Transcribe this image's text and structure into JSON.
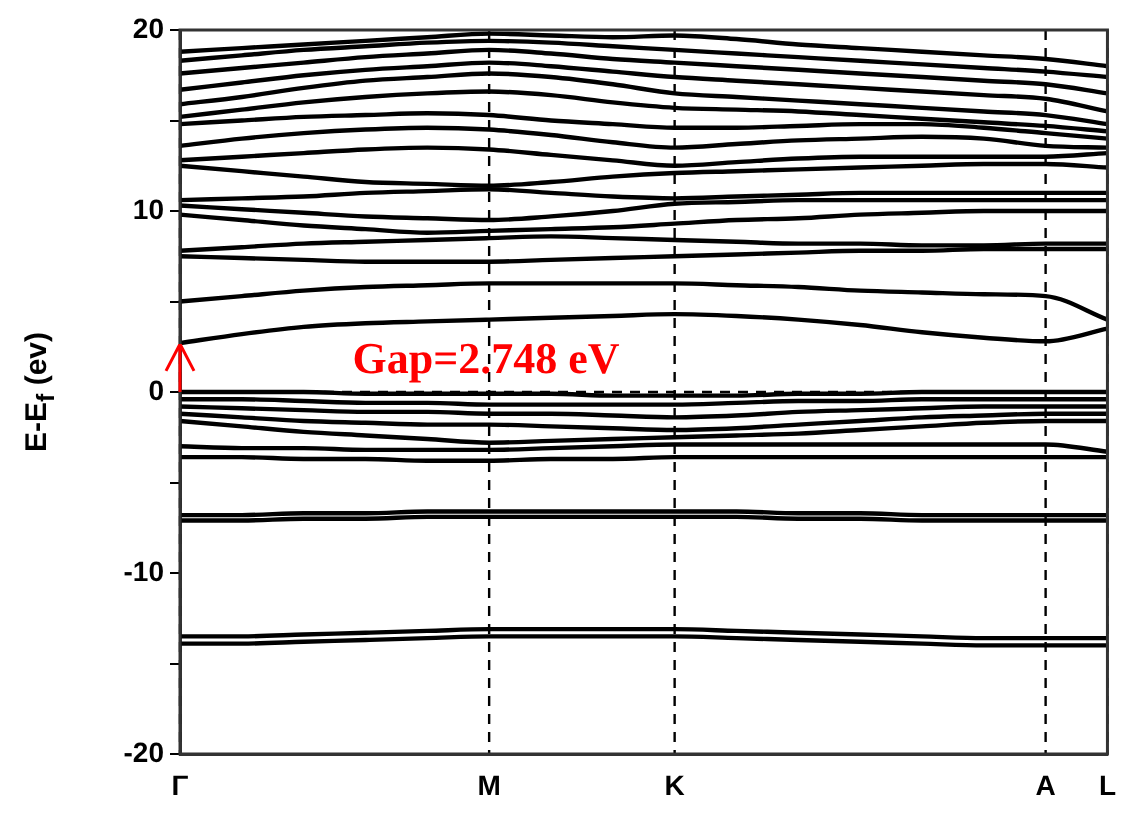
{
  "chart_data": {
    "type": "line",
    "ylabel": "E-E$_{f}$ (ev)",
    "annotations": [
      "Gap=2.748 eV"
    ],
    "categories": [
      "Γ",
      null,
      null,
      null,
      null,
      "M",
      null,
      null,
      "K",
      null,
      null,
      null,
      null,
      null,
      "A",
      "L"
    ],
    "ylim": [
      -20,
      20
    ],
    "yticks": [
      -20,
      {
        "value": -15,
        "label": null
      },
      -10,
      {
        "value": -5,
        "label": null
      },
      0,
      {
        "value": 5,
        "label": null
      },
      10,
      {
        "value": 15,
        "label": null
      },
      20
    ],
    "grid": "x",
    "legend": false,
    "marker": "none",
    "line_style": "solid",
    "ref_lines": [
      {
        "axis": "y",
        "value": 0,
        "label": null,
        "color": "#000000",
        "line_style": "dashed"
      }
    ],
    "series": [
      {
        "color": "#000000",
        "values": [
          -13.9,
          -13.9,
          -13.8,
          -13.7,
          -13.6,
          -13.5,
          -13.5,
          -13.5,
          -13.5,
          -13.6,
          -13.7,
          -13.8,
          -13.9,
          -14.0,
          -14.0,
          -14.0
        ]
      },
      {
        "color": "#000000",
        "values": [
          -13.5,
          -13.5,
          -13.4,
          -13.3,
          -13.2,
          -13.1,
          -13.1,
          -13.1,
          -13.1,
          -13.2,
          -13.3,
          -13.4,
          -13.5,
          -13.6,
          -13.6,
          -13.6
        ]
      },
      {
        "color": "#000000",
        "values": [
          -7.1,
          -7.1,
          -7.0,
          -7.0,
          -6.9,
          -6.9,
          -6.9,
          -6.9,
          -6.9,
          -6.9,
          -7.0,
          -7.0,
          -7.1,
          -7.1,
          -7.1,
          -7.1
        ]
      },
      {
        "color": "#000000",
        "values": [
          -6.8,
          -6.8,
          -6.7,
          -6.7,
          -6.6,
          -6.6,
          -6.6,
          -6.6,
          -6.6,
          -6.6,
          -6.7,
          -6.7,
          -6.8,
          -6.8,
          -6.8,
          -6.8
        ]
      },
      {
        "color": "#000000",
        "values": [
          -3.6,
          -3.6,
          -3.7,
          -3.7,
          -3.8,
          -3.8,
          -3.7,
          -3.7,
          -3.6,
          -3.6,
          -3.6,
          -3.6,
          -3.6,
          -3.6,
          -3.6,
          -3.6
        ]
      },
      {
        "color": "#000000",
        "values": [
          -3.0,
          -3.1,
          -3.1,
          -3.2,
          -3.2,
          -3.2,
          -3.1,
          -3.0,
          -2.9,
          -2.9,
          -2.9,
          -2.9,
          -2.9,
          -2.9,
          -2.9,
          -3.3
        ]
      },
      {
        "color": "#000000",
        "values": [
          -1.6,
          -1.9,
          -2.2,
          -2.4,
          -2.6,
          -2.8,
          -2.7,
          -2.6,
          -2.5,
          -2.4,
          -2.3,
          -2.1,
          -1.9,
          -1.7,
          -1.6,
          -1.6
        ]
      },
      {
        "color": "#000000",
        "values": [
          -1.2,
          -1.4,
          -1.6,
          -1.7,
          -1.8,
          -1.8,
          -1.9,
          -2.0,
          -2.1,
          -2.0,
          -1.8,
          -1.6,
          -1.4,
          -1.3,
          -1.2,
          -1.2
        ]
      },
      {
        "color": "#000000",
        "values": [
          -0.8,
          -0.9,
          -1.0,
          -1.1,
          -1.1,
          -1.2,
          -1.2,
          -1.3,
          -1.4,
          -1.3,
          -1.1,
          -1.0,
          -0.9,
          -0.8,
          -0.8,
          -0.8
        ]
      },
      {
        "color": "#000000",
        "values": [
          -0.4,
          -0.4,
          -0.5,
          -0.6,
          -0.6,
          -0.7,
          -0.7,
          -0.7,
          -0.7,
          -0.6,
          -0.5,
          -0.5,
          -0.4,
          -0.4,
          -0.4,
          -0.4
        ]
      },
      {
        "color": "#000000",
        "values": [
          0,
          0,
          0,
          -0.1,
          -0.1,
          -0.1,
          -0.1,
          -0.2,
          -0.2,
          -0.2,
          -0.1,
          -0.1,
          0,
          0,
          0,
          0
        ]
      },
      {
        "color": "#000000",
        "values": [
          2.7,
          3.2,
          3.6,
          3.8,
          3.9,
          4.0,
          4.1,
          4.2,
          4.3,
          4.2,
          4.0,
          3.7,
          3.3,
          3.0,
          2.8,
          3.5
        ]
      },
      {
        "color": "#000000",
        "values": [
          5.0,
          5.3,
          5.6,
          5.8,
          5.9,
          6.0,
          6.0,
          6.0,
          6.0,
          5.9,
          5.8,
          5.6,
          5.5,
          5.4,
          5.3,
          4.0
        ]
      },
      {
        "color": "#000000",
        "values": [
          7.5,
          7.4,
          7.3,
          7.2,
          7.2,
          7.2,
          7.3,
          7.4,
          7.5,
          7.6,
          7.7,
          7.8,
          7.8,
          7.9,
          7.9,
          7.9
        ]
      },
      {
        "color": "#000000",
        "values": [
          7.8,
          8.0,
          8.2,
          8.3,
          8.4,
          8.5,
          8.6,
          8.5,
          8.4,
          8.3,
          8.2,
          8.2,
          8.1,
          8.1,
          8.2,
          8.2
        ]
      },
      {
        "color": "#000000",
        "values": [
          9.8,
          9.5,
          9.2,
          9.0,
          8.8,
          8.9,
          9.0,
          9.1,
          9.3,
          9.5,
          9.6,
          9.8,
          9.9,
          10.0,
          10.0,
          10.0
        ]
      },
      {
        "color": "#000000",
        "values": [
          10.3,
          10.1,
          9.9,
          9.7,
          9.6,
          9.5,
          9.7,
          10.0,
          10.4,
          10.5,
          10.6,
          10.6,
          10.6,
          10.6,
          10.6,
          10.6
        ]
      },
      {
        "color": "#000000",
        "values": [
          10.6,
          10.7,
          10.8,
          11.0,
          11.1,
          11.2,
          11.0,
          10.8,
          10.7,
          10.8,
          10.9,
          11.0,
          11.0,
          11.0,
          11.0,
          11.0
        ]
      },
      {
        "color": "#000000",
        "values": [
          12.5,
          12.2,
          11.9,
          11.6,
          11.5,
          11.4,
          11.6,
          11.9,
          12.1,
          12.2,
          12.3,
          12.4,
          12.5,
          12.6,
          12.6,
          12.4
        ]
      },
      {
        "color": "#000000",
        "values": [
          12.8,
          13.0,
          13.2,
          13.4,
          13.5,
          13.4,
          13.1,
          12.8,
          12.5,
          12.7,
          12.9,
          13.0,
          13.0,
          13.0,
          13.0,
          13.2
        ]
      },
      {
        "color": "#000000",
        "values": [
          13.6,
          14.0,
          14.3,
          14.5,
          14.6,
          14.5,
          14.2,
          13.8,
          13.5,
          13.7,
          13.9,
          14.0,
          14.1,
          14.0,
          13.6,
          13.5
        ]
      },
      {
        "color": "#000000",
        "values": [
          14.8,
          15.0,
          15.2,
          15.3,
          15.4,
          15.3,
          15.0,
          14.8,
          14.6,
          14.6,
          14.7,
          14.8,
          14.8,
          14.6,
          14.3,
          14.0
        ]
      },
      {
        "color": "#000000",
        "values": [
          15.2,
          15.6,
          16.0,
          16.3,
          16.5,
          16.6,
          16.4,
          16.0,
          15.7,
          15.6,
          15.5,
          15.3,
          15.1,
          14.9,
          14.7,
          14.4
        ]
      },
      {
        "color": "#000000",
        "values": [
          15.9,
          16.3,
          16.8,
          17.2,
          17.4,
          17.6,
          17.4,
          17.0,
          16.5,
          16.3,
          16.1,
          15.9,
          15.7,
          15.5,
          15.3,
          14.8
        ]
      },
      {
        "color": "#000000",
        "values": [
          16.7,
          17.1,
          17.5,
          17.8,
          18.0,
          18.2,
          18.0,
          17.7,
          17.4,
          17.2,
          17.0,
          16.8,
          16.6,
          16.4,
          16.2,
          15.5
        ]
      },
      {
        "color": "#000000",
        "values": [
          17.6,
          17.9,
          18.2,
          18.5,
          18.7,
          18.9,
          18.7,
          18.4,
          18.2,
          18.0,
          17.8,
          17.6,
          17.4,
          17.2,
          17.0,
          16.5
        ]
      },
      {
        "color": "#000000",
        "values": [
          18.3,
          18.6,
          18.9,
          19.1,
          19.3,
          19.4,
          19.3,
          19.1,
          18.9,
          18.7,
          18.5,
          18.3,
          18.1,
          17.9,
          17.7,
          17.4
        ]
      },
      {
        "color": "#000000",
        "values": [
          18.8,
          19.0,
          19.2,
          19.4,
          19.6,
          19.8,
          19.7,
          19.6,
          19.7,
          19.5,
          19.2,
          19.0,
          18.8,
          18.6,
          18.4,
          18.0
        ]
      }
    ]
  }
}
